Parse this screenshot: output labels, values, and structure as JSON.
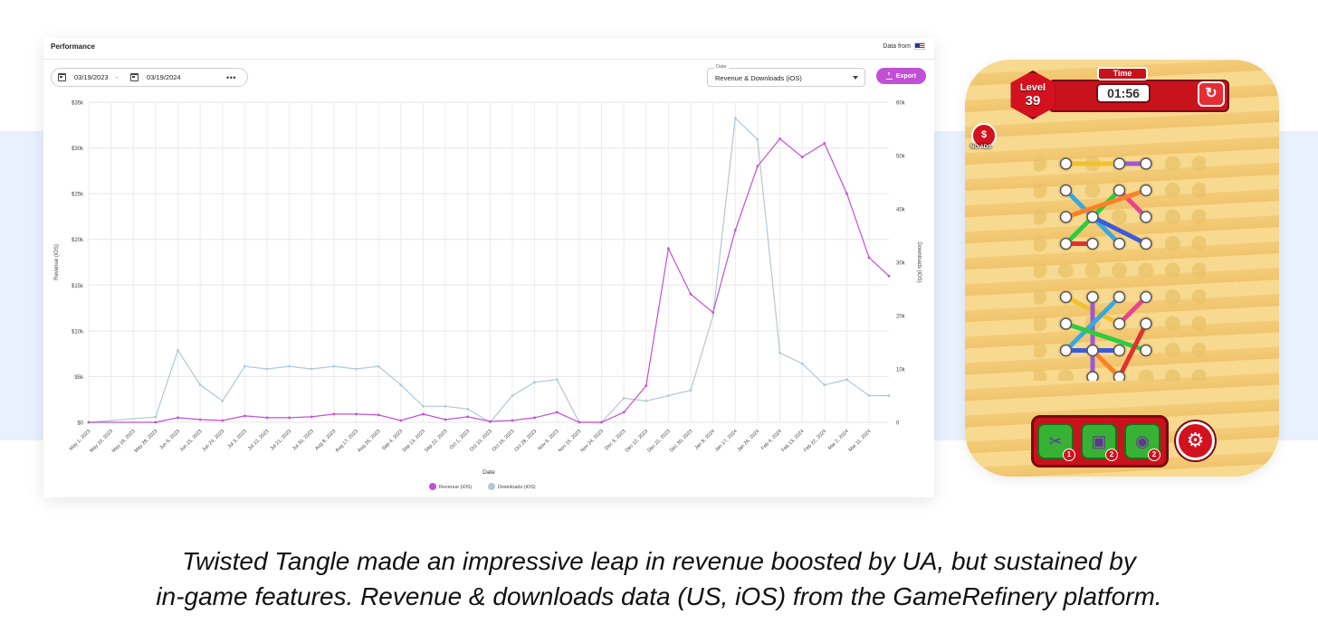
{
  "card": {
    "title": "Performance",
    "data_from_label": "Data from",
    "start_date": "03/19/2023",
    "range_separator": "-",
    "end_date": "03/19/2024",
    "more_label": "•••",
    "date_select_label": "Date",
    "date_select_value": "Revenue & Downloads (iOS)",
    "export_label": "Export"
  },
  "colors": {
    "revenue": "#c150d6",
    "downloads": "#b3c7d6",
    "export_button": "#c150d6",
    "band": "#e8f1fd"
  },
  "chart_data": {
    "type": "line",
    "xlabel": "Date",
    "ylabel": "Revenue (iOS)",
    "y2label": "Downloads (iOS)",
    "ylim": [
      0,
      35000
    ],
    "y2lim": [
      0,
      60000
    ],
    "y_ticks": [
      "$0",
      "$5k",
      "$10k",
      "$15k",
      "$20k",
      "$25k",
      "$30k",
      "$35k"
    ],
    "y2_ticks": [
      "0",
      "10k",
      "20k",
      "30k",
      "40k",
      "50k",
      "60k"
    ],
    "x_ticks": [
      "May 1, 2023",
      "May 10, 2023",
      "May 19, 2023",
      "May 28, 2023",
      "Jun 6, 2023",
      "Jun 15, 2023",
      "Jun 24, 2023",
      "Jul 3, 2023",
      "Jul 12, 2023",
      "Jul 21, 2023",
      "Jul 30, 2023",
      "Aug 8, 2023",
      "Aug 17, 2023",
      "Aug 26, 2023",
      "Sep 4, 2023",
      "Sep 13, 2023",
      "Sep 22, 2023",
      "Oct 1, 2023",
      "Oct 10, 2023",
      "Oct 19, 2023",
      "Oct 28, 2023",
      "Nov 6, 2023",
      "Nov 15, 2023",
      "Nov 24, 2023",
      "Dec 3, 2023",
      "Dec 12, 2023",
      "Dec 21, 2023",
      "Dec 30, 2023",
      "Jan 8, 2024",
      "Jan 17, 2024",
      "Jan 26, 2024",
      "Feb 4, 2024",
      "Feb 13, 2024",
      "Feb 22, 2024",
      "Mar 2, 2024",
      "Mar 11, 2024"
    ],
    "legend_position": "bottom-center",
    "grid": true,
    "series": [
      {
        "name": "Revenue (iOS)",
        "axis": "left",
        "x": [
          "2023-05-01",
          "2023-05-28",
          "2023-06-06",
          "2023-06-15",
          "2023-06-24",
          "2023-07-03",
          "2023-07-12",
          "2023-07-21",
          "2023-07-30",
          "2023-08-08",
          "2023-08-17",
          "2023-08-26",
          "2023-09-04",
          "2023-09-13",
          "2023-09-22",
          "2023-10-01",
          "2023-10-10",
          "2023-10-19",
          "2023-10-28",
          "2023-11-06",
          "2023-11-15",
          "2023-11-24",
          "2023-12-03",
          "2023-12-12",
          "2023-12-21",
          "2023-12-30",
          "2024-01-08",
          "2024-01-17",
          "2024-01-26",
          "2024-02-04",
          "2024-02-13",
          "2024-02-22",
          "2024-03-02",
          "2024-03-11",
          "2024-03-19"
        ],
        "values": [
          0,
          0,
          500,
          300,
          200,
          700,
          500,
          500,
          600,
          900,
          900,
          800,
          200,
          900,
          300,
          600,
          100,
          200,
          500,
          1100,
          0,
          0,
          1100,
          4000,
          19000,
          14000,
          12000,
          21000,
          28000,
          31000,
          29000,
          30500,
          25000,
          18000,
          16000
        ]
      },
      {
        "name": "Downloads (iOS)",
        "axis": "right",
        "x": [
          "2023-05-01",
          "2023-05-28",
          "2023-06-06",
          "2023-06-15",
          "2023-06-24",
          "2023-07-03",
          "2023-07-12",
          "2023-07-21",
          "2023-07-30",
          "2023-08-08",
          "2023-08-17",
          "2023-08-26",
          "2023-09-04",
          "2023-09-13",
          "2023-09-22",
          "2023-10-01",
          "2023-10-10",
          "2023-10-19",
          "2023-10-28",
          "2023-11-06",
          "2023-11-15",
          "2023-11-24",
          "2023-12-03",
          "2023-12-12",
          "2023-12-21",
          "2023-12-30",
          "2024-01-08",
          "2024-01-17",
          "2024-01-26",
          "2024-02-04",
          "2024-02-13",
          "2024-02-22",
          "2024-03-02",
          "2024-03-11",
          "2024-03-19"
        ],
        "values": [
          0,
          1000,
          13500,
          7000,
          4000,
          10500,
          10000,
          10500,
          10000,
          10500,
          10000,
          10500,
          7000,
          3000,
          3000,
          2500,
          0,
          5000,
          7500,
          8000,
          0,
          0,
          4500,
          4000,
          5000,
          6000,
          20000,
          57000,
          53000,
          13000,
          11000,
          7000,
          8000,
          5000,
          5000
        ]
      }
    ]
  },
  "game": {
    "level_label": "Level",
    "level_number": "39",
    "time_label": "Time",
    "time_value": "01:56",
    "restart_icon": "↻",
    "noads_icon": "$",
    "noads_label": "NO ADS",
    "tools": [
      {
        "icon": "scissors-icon",
        "glyph": "✂",
        "count": "1"
      },
      {
        "icon": "toolbox-icon",
        "glyph": "▣",
        "count": "2"
      },
      {
        "icon": "crystal-ball-icon",
        "glyph": "◉",
        "count": "2"
      }
    ],
    "settings_glyph": "⚙",
    "rope_colors": [
      "#f2c12e",
      "#9b59d6",
      "#3aa7e0",
      "#2ecc40",
      "#e84393",
      "#ff7f27",
      "#3b5bdb",
      "#e23030"
    ]
  },
  "caption": {
    "line1": "Twisted Tangle made an impressive leap in revenue boosted by UA, but sustained by",
    "line2": "in-game features. Revenue & downloads data (US, iOS) from the GameRefinery platform."
  }
}
